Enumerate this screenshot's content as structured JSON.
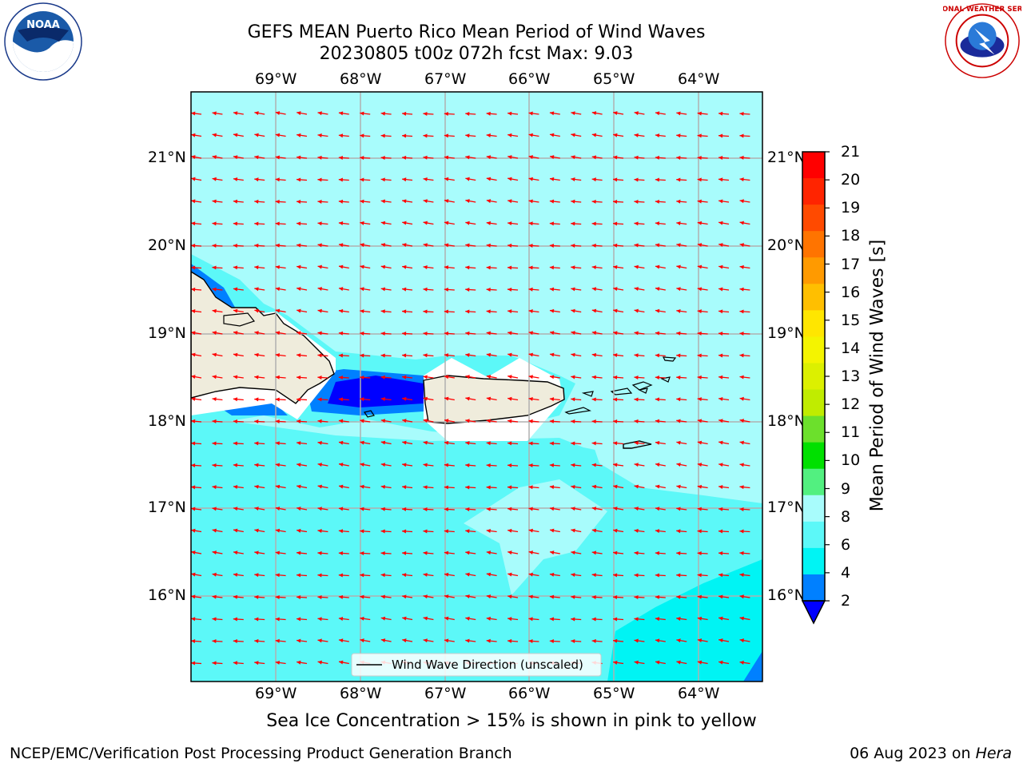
{
  "title": {
    "line1": "GEFS MEAN Puerto Rico Mean Period of Wind Waves",
    "line2": "20230805 t00z 072h fcst   Max: 9.03"
  },
  "logos": {
    "left": "NOAA",
    "right": "NATIONAL WEATHER SERVICE"
  },
  "map": {
    "lat_labels": [
      "21°N",
      "20°N",
      "19°N",
      "18°N",
      "17°N",
      "16°N"
    ],
    "lon_labels": [
      "69°W",
      "68°W",
      "67°W",
      "66°W",
      "65°W",
      "64°W"
    ],
    "legend_label": "Wind Wave Direction (unscaled)",
    "arrow_color": "#ff0000",
    "land_color": "#efecdc"
  },
  "colorbar": {
    "label": "Mean Period of Wind Waves [s]",
    "ticks": [
      "21",
      "20",
      "19",
      "18",
      "17",
      "16",
      "15",
      "14",
      "13",
      "12",
      "11",
      "10",
      "9",
      "8",
      "6",
      "4",
      "2"
    ],
    "colors": [
      "#ff0000",
      "#ff2400",
      "#ff4a00",
      "#ff7400",
      "#ff9a00",
      "#ffbf00",
      "#ffe600",
      "#f4f400",
      "#dcf000",
      "#c0ec00",
      "#6ce02c",
      "#00e000",
      "#52f080",
      "#a8fcfc",
      "#5cf8f8",
      "#00f4f4",
      "#0080ff",
      "#0000ff"
    ]
  },
  "ice_note": "Sea Ice Concentration > 15% is shown in pink to yellow",
  "footer": {
    "left": "NCEP/EMC/Verification Post Processing Product Generation Branch",
    "date": "06 Aug 2023 on",
    "machine": "Hera"
  }
}
